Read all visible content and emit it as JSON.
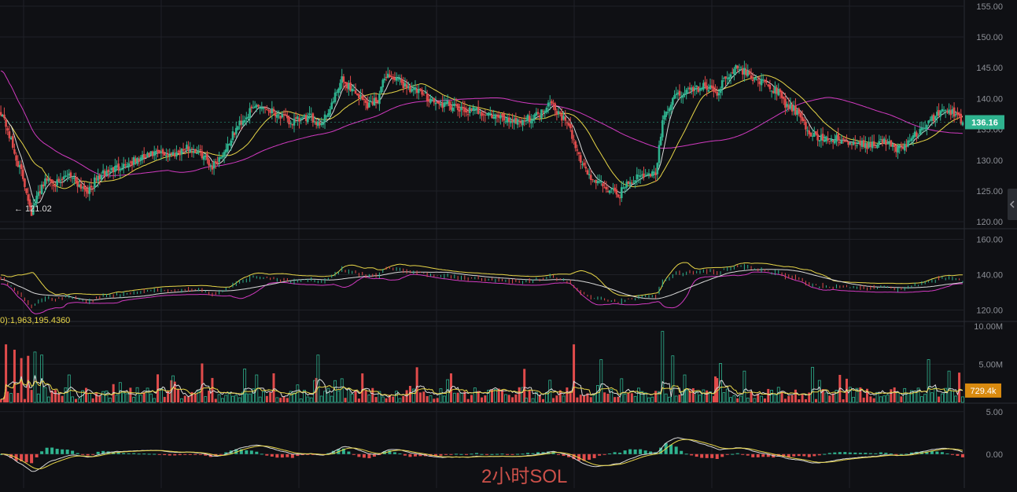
{
  "colors": {
    "bg": "#0f1014",
    "grid": "#1f2127",
    "separator": "#2a2c33",
    "axis_text": "#8c8f96",
    "up": "#2fb38f",
    "down": "#e04b4b",
    "ma_white": "#d9d9d9",
    "ma_yellow": "#e8d648",
    "ma_pink": "#d13ac0",
    "price_tag": "#2fb38f",
    "vol_tag": "#d98a0f",
    "watermark": "#e0574f"
  },
  "chart_data": {
    "type": "candlestick",
    "panels": [
      {
        "name": "price",
        "yticks": [
          "155.00",
          "150.00",
          "145.00",
          "140.00",
          "135.00",
          "130.00",
          "125.00",
          "120.00"
        ],
        "ylim": [
          119,
          156
        ]
      },
      {
        "name": "boll",
        "yticks": [
          "160.00",
          "140.00",
          "120.00"
        ],
        "ylim": [
          114,
          166
        ]
      },
      {
        "name": "volume",
        "yticks": [
          "10.00M",
          "5.00M"
        ],
        "ylim": [
          0,
          10.6
        ]
      },
      {
        "name": "macd",
        "yticks": [
          "5.00",
          "0.00"
        ],
        "ylim": [
          -4,
          6
        ]
      }
    ],
    "price_points": [
      [
        0,
        138
      ],
      [
        4,
        135
      ],
      [
        8,
        131
      ],
      [
        12,
        128
      ],
      [
        15,
        125
      ],
      [
        18,
        121.5
      ],
      [
        20,
        123
      ],
      [
        24,
        126
      ],
      [
        28,
        127
      ],
      [
        34,
        126
      ],
      [
        40,
        128
      ],
      [
        46,
        126
      ],
      [
        52,
        125
      ],
      [
        56,
        127
      ],
      [
        62,
        128
      ],
      [
        70,
        129
      ],
      [
        80,
        130
      ],
      [
        90,
        131
      ],
      [
        100,
        131
      ],
      [
        110,
        132
      ],
      [
        118,
        131
      ],
      [
        124,
        129
      ],
      [
        130,
        131
      ],
      [
        140,
        136
      ],
      [
        150,
        139
      ],
      [
        160,
        138
      ],
      [
        170,
        136
      ],
      [
        180,
        137
      ],
      [
        188,
        136
      ],
      [
        194,
        139
      ],
      [
        200,
        143
      ],
      [
        208,
        141
      ],
      [
        215,
        139
      ],
      [
        221,
        140
      ],
      [
        226,
        144
      ],
      [
        232,
        143
      ],
      [
        238,
        142
      ],
      [
        245,
        141
      ],
      [
        252,
        140
      ],
      [
        256,
        139
      ],
      [
        262,
        139
      ],
      [
        270,
        138
      ],
      [
        280,
        138
      ],
      [
        290,
        137
      ],
      [
        300,
        136.5
      ],
      [
        306,
        136.5
      ],
      [
        312,
        137
      ],
      [
        318,
        138
      ],
      [
        322,
        140
      ],
      [
        326,
        138
      ],
      [
        332,
        136
      ],
      [
        336,
        133
      ],
      [
        340,
        130
      ],
      [
        346,
        127
      ],
      [
        352,
        126
      ],
      [
        358,
        125
      ],
      [
        362,
        124
      ],
      [
        366,
        126
      ],
      [
        372,
        127
      ],
      [
        378,
        127.5
      ],
      [
        384,
        128
      ],
      [
        388,
        136
      ],
      [
        394,
        140
      ],
      [
        400,
        141
      ],
      [
        406,
        141.5
      ],
      [
        412,
        142
      ],
      [
        420,
        141
      ],
      [
        426,
        144
      ],
      [
        432,
        145
      ],
      [
        438,
        144
      ],
      [
        444,
        143
      ],
      [
        450,
        142
      ],
      [
        456,
        141
      ],
      [
        460,
        139
      ],
      [
        466,
        138
      ],
      [
        470,
        136
      ],
      [
        476,
        134
      ],
      [
        482,
        133.5
      ],
      [
        488,
        133.5
      ],
      [
        494,
        133
      ],
      [
        500,
        132.5
      ],
      [
        506,
        132.5
      ],
      [
        512,
        132.5
      ],
      [
        518,
        133
      ],
      [
        524,
        132
      ],
      [
        528,
        132
      ],
      [
        532,
        133
      ],
      [
        536,
        134
      ],
      [
        540,
        135
      ],
      [
        544,
        136
      ],
      [
        548,
        137
      ],
      [
        552,
        138.5
      ],
      [
        556,
        138
      ],
      [
        560,
        137.5
      ],
      [
        564,
        136
      ]
    ],
    "last_price": {
      "value": 136.16,
      "label": "136.16"
    },
    "low_marker": {
      "value": 121.02,
      "label": "← 121.02"
    },
    "volume_readout": "0):1,963,195.4360",
    "last_volume": {
      "value": 0.7294,
      "label": "729.4k"
    },
    "volume_spikes": [
      [
        3,
        7.6
      ],
      [
        8,
        6.9
      ],
      [
        12,
        5.8
      ],
      [
        16,
        6.1
      ],
      [
        20,
        6.6
      ],
      [
        24,
        6.2
      ],
      [
        40,
        3.6
      ],
      [
        70,
        2.6
      ],
      [
        100,
        2.9
      ],
      [
        118,
        5.1
      ],
      [
        124,
        3.2
      ],
      [
        150,
        3.6
      ],
      [
        186,
        6.2
      ],
      [
        200,
        3.1
      ],
      [
        212,
        3.8
      ],
      [
        244,
        4.6
      ],
      [
        264,
        3.8
      ],
      [
        322,
        2.9
      ],
      [
        336,
        7.6
      ],
      [
        352,
        5.6
      ],
      [
        364,
        3.1
      ],
      [
        388,
        9.3
      ],
      [
        394,
        6.1
      ],
      [
        422,
        5.1
      ],
      [
        436,
        4.1
      ],
      [
        476,
        4.6
      ],
      [
        496,
        3.1
      ],
      [
        544,
        5.6
      ],
      [
        556,
        4.1
      ],
      [
        562,
        3.9
      ]
    ]
  },
  "watermark": {
    "text": "2小时SOL"
  }
}
